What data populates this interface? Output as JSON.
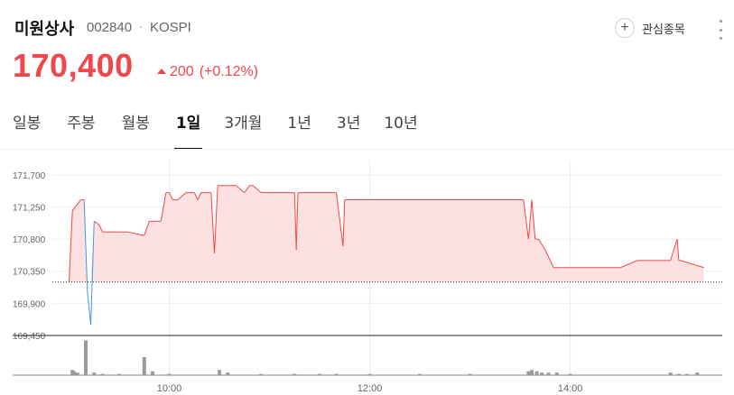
{
  "header": {
    "name": "미원상사",
    "code": "002840",
    "separator": "·",
    "market": "KOSPI",
    "favorite_label": "관심종목",
    "favorite_icon": "plus-icon",
    "more_icon": "more-vertical-icon"
  },
  "quote": {
    "price": "170,400",
    "change_icon": "up-triangle-icon",
    "change": "200",
    "change_pct": "(+0.12%)"
  },
  "tabs": [
    {
      "label": "일봉",
      "active": false
    },
    {
      "label": "주봉",
      "active": false
    },
    {
      "label": "월봉",
      "active": false
    },
    {
      "label": "1일",
      "active": true
    },
    {
      "label": "3개월",
      "active": false
    },
    {
      "label": "1년",
      "active": false
    },
    {
      "label": "3년",
      "active": false
    },
    {
      "label": "10년",
      "active": false
    }
  ],
  "colors": {
    "up": "#f0474b",
    "down": "#3d98e8",
    "fill": "#fde1e1",
    "volume": "#9a9a9a"
  },
  "chart_data": {
    "type": "area",
    "y_ticks": [
      "171,700",
      "171,250",
      "170,800",
      "170,350",
      "169,900",
      "169,450"
    ],
    "x_ticks": [
      "10:00",
      "12:00",
      "14:00"
    ],
    "ylim": [
      169450,
      171900
    ],
    "baseline": 170200,
    "grid": true,
    "x": [
      "09:00",
      "09:02",
      "09:07",
      "09:09",
      "09:11",
      "09:13",
      "09:15",
      "09:18",
      "09:20",
      "09:25",
      "09:30",
      "09:35",
      "09:45",
      "09:48",
      "09:50",
      "09:55",
      "09:58",
      "10:00",
      "10:02",
      "10:05",
      "10:10",
      "10:15",
      "10:17",
      "10:19",
      "10:21",
      "10:25",
      "10:27",
      "10:29",
      "10:31",
      "10:40",
      "10:45",
      "10:48",
      "10:50",
      "10:55",
      "11:00",
      "11:15",
      "11:16",
      "11:17",
      "11:20",
      "11:40",
      "11:44",
      "11:45",
      "11:46",
      "12:00",
      "13:00",
      "13:32",
      "13:35",
      "13:37",
      "13:39",
      "13:41",
      "13:45",
      "13:50",
      "14:00",
      "14:30",
      "14:40",
      "15:00",
      "15:04",
      "15:05",
      "15:06",
      "15:20"
    ],
    "values": [
      170200,
      171200,
      171350,
      171350,
      170050,
      169600,
      171050,
      171000,
      170900,
      170900,
      170900,
      170900,
      170850,
      171050,
      171050,
      171050,
      171450,
      171450,
      171350,
      171350,
      171450,
      171450,
      171350,
      171450,
      171450,
      171450,
      170600,
      171550,
      171550,
      171550,
      171450,
      171550,
      171550,
      171450,
      171450,
      171450,
      170650,
      171450,
      171450,
      171450,
      170700,
      171350,
      171350,
      171350,
      171350,
      171350,
      170800,
      171350,
      170800,
      170800,
      170650,
      170400,
      170400,
      170400,
      170500,
      170500,
      170800,
      170500,
      170500,
      170400
    ],
    "volume": {
      "x": [
        "09:02",
        "09:03",
        "09:05",
        "09:10",
        "09:15",
        "09:20",
        "09:30",
        "09:45",
        "09:50",
        "10:00",
        "10:30",
        "10:35",
        "10:55",
        "11:15",
        "11:30",
        "11:40",
        "12:00",
        "12:30",
        "13:00",
        "13:35",
        "13:37",
        "13:40",
        "13:43",
        "13:47",
        "13:52",
        "14:00",
        "15:00",
        "15:05",
        "15:10",
        "15:16"
      ],
      "values": [
        4,
        3,
        2,
        27,
        2,
        1,
        1,
        14,
        3,
        1,
        4,
        2,
        1,
        1,
        1,
        1,
        1,
        1,
        1,
        3,
        4,
        3,
        2,
        2,
        2,
        1,
        2,
        1,
        1,
        2
      ]
    }
  }
}
